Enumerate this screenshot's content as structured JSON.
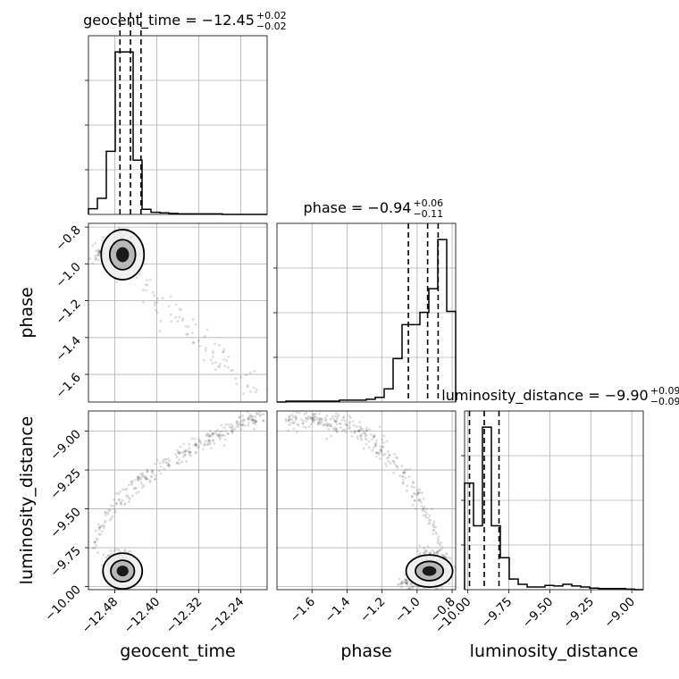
{
  "chart_data": [
    {
      "type": "histogram",
      "param": "geocent_time",
      "title_main": "geocent_time = −12.45",
      "title_plus": "+0.02",
      "title_minus": "−0.02",
      "xlim": [
        -12.53,
        -12.19
      ],
      "bin_edges": [
        -12.53,
        -12.513,
        -12.496,
        -12.479,
        -12.462,
        -12.445,
        -12.428,
        -12.411,
        -12.394,
        -12.377,
        -12.36,
        -12.343,
        -12.326,
        -12.309,
        -12.292,
        -12.275,
        -12.258,
        -12.241,
        -12.224,
        -12.207,
        -12.19
      ],
      "counts": [
        11,
        31,
        122,
        314,
        314,
        105,
        10,
        4,
        3,
        2,
        1,
        1,
        1,
        1,
        1,
        0,
        0,
        0,
        0,
        0
      ],
      "quantiles": [
        -12.47,
        -12.45,
        -12.43
      ]
    },
    {
      "type": "histogram",
      "param": "phase",
      "title_main": "phase = −0.94",
      "title_plus": "+0.06",
      "title_minus": "−0.11",
      "xlim": [
        -1.8,
        -0.78
      ],
      "bin_edges": [
        -1.8,
        -1.749,
        -1.698,
        -1.647,
        -1.596,
        -1.545,
        -1.494,
        -1.443,
        -1.392,
        -1.341,
        -1.29,
        -1.239,
        -1.188,
        -1.137,
        -1.086,
        -1.035,
        -0.984,
        -0.933,
        -0.882,
        -0.831,
        -0.78
      ],
      "counts": [
        0,
        1,
        1,
        1,
        1,
        1,
        1,
        2,
        2,
        2,
        3,
        5,
        14,
        46,
        82,
        82,
        95,
        120,
        172,
        96
      ],
      "quantiles": [
        -1.05,
        -0.94,
        -0.88
      ]
    },
    {
      "type": "histogram",
      "param": "luminosity_distance",
      "title_main": "luminosity_distance = −9.90",
      "title_plus": "+0.09",
      "title_minus": "−0.09",
      "xlim": [
        -10.02,
        -8.93
      ],
      "bin_edges": [
        -10.02,
        -9.9655,
        -9.911,
        -9.8565,
        -9.802,
        -9.7475,
        -9.693,
        -9.6385,
        -9.584,
        -9.5295,
        -9.475,
        -9.4205,
        -9.366,
        -9.3115,
        -9.257,
        -9.2025,
        -9.148,
        -9.0935,
        -9.039,
        -8.9845,
        -8.93
      ],
      "counts": [
        200,
        120,
        305,
        120,
        60,
        20,
        10,
        5,
        5,
        8,
        7,
        10,
        7,
        5,
        3,
        2,
        2,
        2,
        1,
        0
      ],
      "quantiles": [
        -9.99,
        -9.9,
        -9.81
      ]
    },
    {
      "type": "scatter",
      "x_param": "geocent_time",
      "y_param": "phase",
      "xlim": [
        -12.53,
        -12.19
      ],
      "ylim": [
        -1.75,
        -0.78
      ]
    },
    {
      "type": "scatter",
      "x_param": "geocent_time",
      "y_param": "luminosity_distance",
      "xlim": [
        -12.53,
        -12.19
      ],
      "ylim": [
        -10.02,
        -8.87
      ]
    },
    {
      "type": "scatter",
      "x_param": "phase",
      "y_param": "luminosity_distance",
      "xlim": [
        -1.8,
        -0.78
      ],
      "ylim": [
        -10.02,
        -8.87
      ]
    }
  ],
  "axes": {
    "geocent_time": {
      "label": "geocent_time",
      "ticks": [
        -12.48,
        -12.4,
        -12.32,
        -12.24
      ],
      "tick_labels": [
        "−12.48",
        "−12.40",
        "−12.32",
        "−12.24"
      ]
    },
    "phase": {
      "label": "phase",
      "ticks": [
        -1.6,
        -1.4,
        -1.2,
        -1.0,
        -0.8
      ],
      "tick_labels": [
        "−1.6",
        "−1.4",
        "−1.2",
        "−1.0",
        "−0.8"
      ]
    },
    "luminosity_distance": {
      "label": "luminosity_distance",
      "ticks": [
        -10.0,
        -9.75,
        -9.5,
        -9.25,
        -9.0
      ],
      "tick_labels": [
        "−10.00",
        "−9.75",
        "−9.50",
        "−9.25",
        "−9.00"
      ]
    }
  }
}
